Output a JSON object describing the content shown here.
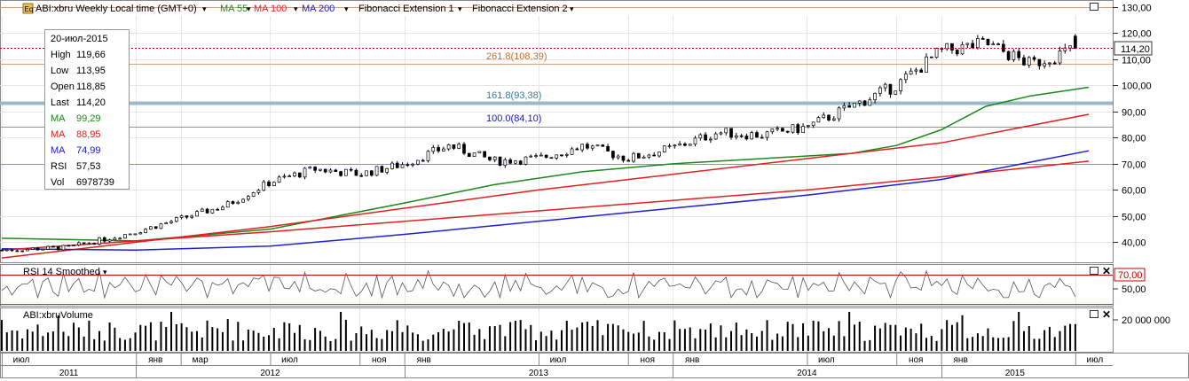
{
  "header": {
    "logo": "Eq",
    "symbol_menu": "ABI:xbru Weekly  Local time (GMT+0)",
    "ma55": "MA 55",
    "ma100": "MA 100",
    "ma200": "MA 200",
    "fib1": "Fibonacci Extension 1",
    "fib2": "Fibonacci Extension 2"
  },
  "infobox": {
    "date": "20-июл-2015",
    "rows": [
      {
        "label": "High",
        "value": "119,66",
        "color": "#000000"
      },
      {
        "label": "Low",
        "value": "113,95",
        "color": "#000000"
      },
      {
        "label": "Open",
        "value": "118,85",
        "color": "#000000"
      },
      {
        "label": "Last",
        "value": "114,20",
        "color": "#000000"
      },
      {
        "label": "MA",
        "value": "99,29",
        "color": "#1a8a1a"
      },
      {
        "label": "MA",
        "value": "88,95",
        "color": "#e02020"
      },
      {
        "label": "MA",
        "value": "74,99",
        "color": "#2020d0"
      },
      {
        "label": "RSI",
        "value": "57,53",
        "color": "#000000"
      },
      {
        "label": "Vol",
        "value": "6978739",
        "color": "#000000"
      }
    ]
  },
  "fib_labels": {
    "f2618": "261.8(108,39)",
    "f1618": "161.8(93,38)",
    "f100": "100.0(84,10)"
  },
  "last_price_label": "114,20",
  "price_ticks": [
    "130,00",
    "120,00",
    "110,00",
    "100,00",
    "90,00",
    "80,00",
    "70,00",
    "60,00",
    "50,00",
    "40,00"
  ],
  "rsi_panel": {
    "title": "RSI 14 Smoothed",
    "level_label": "70,00",
    "tick": "50,00"
  },
  "volume_panel": {
    "title": "ABI:xbruVolume",
    "tick": "20 000 000"
  },
  "x_axis": {
    "months": [
      "июл",
      "янв",
      "мар",
      "июл",
      "ноя",
      "янв",
      "июл",
      "ноя",
      "янв",
      "июл",
      "ноя",
      "янв",
      "июл"
    ],
    "years": [
      "2011",
      "2012",
      "2013",
      "2014",
      "2015"
    ]
  },
  "colors": {
    "up": "#ffffff",
    "down": "#000000",
    "ma55": "#1a8a1a",
    "ma100": "#e02020",
    "ma200": "#2020d0",
    "fib": "#8aa6d8",
    "dotted": "#cc0000"
  },
  "chart_data": {
    "type": "candlestick",
    "title": "ABI:xbru Weekly",
    "period": "2011-07 to 2015-07",
    "ylim": [
      33,
      132
    ],
    "close_approx": [
      {
        "date": "2011-07",
        "close": 37
      },
      {
        "date": "2011-10",
        "close": 38
      },
      {
        "date": "2012-01",
        "close": 44
      },
      {
        "date": "2012-03",
        "close": 49
      },
      {
        "date": "2012-05",
        "close": 54
      },
      {
        "date": "2012-07",
        "close": 63
      },
      {
        "date": "2012-09",
        "close": 68
      },
      {
        "date": "2012-11",
        "close": 66
      },
      {
        "date": "2013-01",
        "close": 70
      },
      {
        "date": "2013-03",
        "close": 77
      },
      {
        "date": "2013-05",
        "close": 71
      },
      {
        "date": "2013-07",
        "close": 72
      },
      {
        "date": "2013-09",
        "close": 77
      },
      {
        "date": "2013-11",
        "close": 72
      },
      {
        "date": "2014-01",
        "close": 76
      },
      {
        "date": "2014-03",
        "close": 82
      },
      {
        "date": "2014-05",
        "close": 81
      },
      {
        "date": "2014-07",
        "close": 84
      },
      {
        "date": "2014-09",
        "close": 92
      },
      {
        "date": "2014-11",
        "close": 100
      },
      {
        "date": "2015-01",
        "close": 113
      },
      {
        "date": "2015-03",
        "close": 116
      },
      {
        "date": "2015-05",
        "close": 108
      },
      {
        "date": "2015-07",
        "close": 114.2
      }
    ],
    "last": {
      "date": "2015-07-20",
      "open": 118.85,
      "high": 119.66,
      "low": 113.95,
      "close": 114.2
    },
    "moving_averages": [
      {
        "name": "MA 55",
        "last": 99.29
      },
      {
        "name": "MA 100",
        "last": 88.95
      },
      {
        "name": "MA 200",
        "last": 74.99
      }
    ],
    "fibonacci_levels": [
      {
        "label": "261.8",
        "value": 108.39
      },
      {
        "label": "161.8",
        "value": 93.38
      },
      {
        "label": "100.0",
        "value": 84.1
      }
    ],
    "rsi": {
      "period": 14,
      "last": 57.53,
      "level": 70
    },
    "volume_last": 6978739
  }
}
